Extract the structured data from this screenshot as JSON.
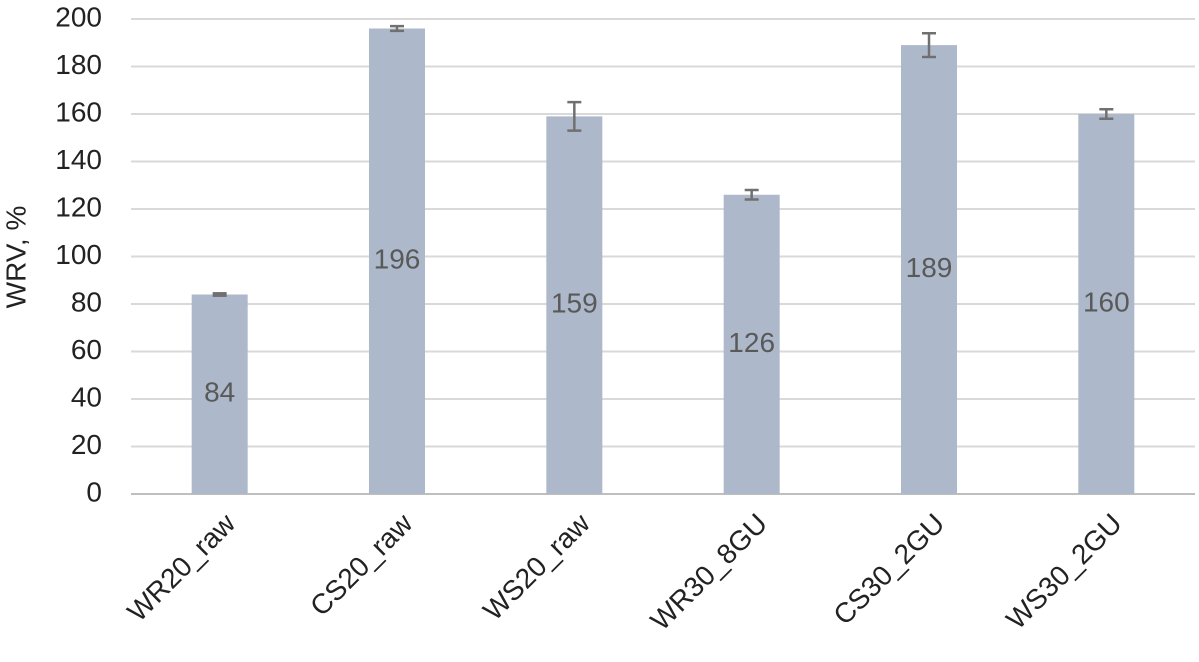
{
  "chart_data": {
    "type": "bar",
    "y_label": "WRV, %",
    "categories": [
      "WR20_raw",
      "CS20_raw",
      "WS20_raw",
      "WR30_8GU",
      "CS30_2GU",
      "WS30_2GU"
    ],
    "values": [
      84,
      196,
      159,
      126,
      189,
      160
    ],
    "errors": [
      0.5,
      1,
      6,
      2,
      5,
      2
    ],
    "color": "#adb9ca",
    "error_color": "#707070",
    "ylim": [
      0,
      200
    ],
    "yticks": [
      0,
      20,
      40,
      60,
      80,
      100,
      120,
      140,
      160,
      180,
      200
    ],
    "grid": true
  }
}
